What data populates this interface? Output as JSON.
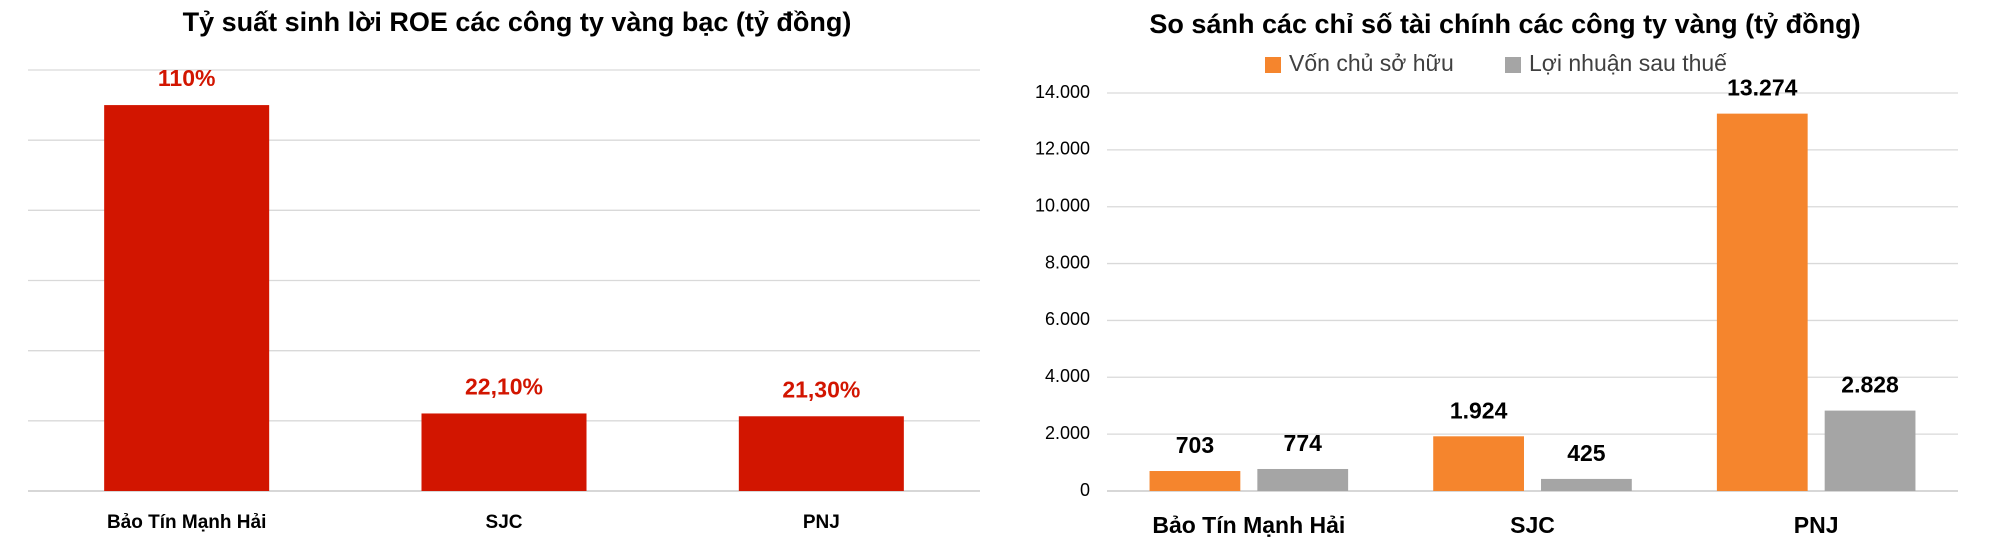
{
  "chart_data": [
    {
      "type": "bar",
      "title": "Tỷ suất sinh lời ROE các công ty vàng bạc (tỷ đồng)",
      "categories": [
        "Bảo Tín Mạnh Hải",
        "SJC",
        "PNJ"
      ],
      "values": [
        110,
        22.1,
        21.3
      ],
      "value_labels": [
        "110%",
        "22,10%",
        "21,30%"
      ],
      "color": "#d21500",
      "ylim": [
        0,
        120
      ],
      "yticks": [
        0,
        20,
        40,
        60,
        80,
        100,
        120
      ],
      "show_tick_labels": false,
      "grid": true
    },
    {
      "type": "grouped-bar",
      "title": "So sánh các chỉ số tài chính các công ty vàng (tỷ đồng)",
      "categories": [
        "Bảo Tín Mạnh Hải",
        "SJC",
        "PNJ"
      ],
      "series": [
        {
          "name": "Vốn chủ sở hữu",
          "color": "#f5852d",
          "values": [
            703,
            1924,
            13274
          ],
          "value_labels": [
            "703",
            "1.924",
            "13.274"
          ]
        },
        {
          "name": "Lợi nhuận sau thuế",
          "color": "#a5a5a5",
          "values": [
            774,
            425,
            2828
          ],
          "value_labels": [
            "774",
            "425",
            "2.828"
          ]
        }
      ],
      "ylim": [
        0,
        14000
      ],
      "yticks": [
        0,
        {
          "value": 2000,
          "label": "2.000"
        },
        {
          "value": 4000,
          "label": "4.000"
        },
        {
          "value": 6000,
          "label": "6.000"
        },
        {
          "value": 8000,
          "label": "8.000"
        },
        {
          "value": 10000,
          "label": "10.000"
        },
        {
          "value": 12000,
          "label": "12.000"
        },
        {
          "value": 14000,
          "label": "14.000"
        }
      ],
      "show_tick_labels": true,
      "grid": true,
      "legend": "top"
    }
  ]
}
